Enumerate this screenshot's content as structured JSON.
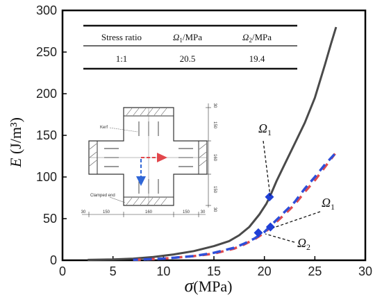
{
  "chart_data": {
    "type": "line",
    "xlabel": {
      "symbol": "σ",
      "unit": "(MPa)"
    },
    "ylabel": {
      "symbol": "E",
      "unit": "(J/m³)"
    },
    "xlim": [
      0,
      30
    ],
    "ylim": [
      0,
      300
    ],
    "xticks": [
      0,
      5,
      10,
      15,
      20,
      25,
      30
    ],
    "yticks": [
      0,
      50,
      100,
      150,
      200,
      250,
      300
    ],
    "grid": false,
    "series": [
      {
        "style": "solid",
        "color": "#4a4a4a",
        "x": [
          2.5,
          5,
          7,
          9,
          11,
          13,
          15,
          16.5,
          17.5,
          18.5,
          19.5,
          20.2,
          20.6,
          21.2,
          22,
          23,
          24,
          25,
          26,
          26.6,
          27.1
        ],
        "y": [
          0.5,
          1,
          2,
          4,
          7,
          11,
          17,
          23,
          30,
          40,
          55,
          68,
          78,
          95,
          115,
          140,
          165,
          195,
          235,
          260,
          280
        ]
      },
      {
        "style": "dashed",
        "color": "#e04a4f",
        "x": [
          7,
          10,
          13,
          15,
          17,
          18,
          19,
          20,
          21,
          22,
          23,
          24,
          25,
          26,
          27
        ],
        "y": [
          0.5,
          2,
          5,
          8,
          14,
          19,
          25,
          33,
          44,
          55,
          67,
          82,
          96,
          112,
          128
        ]
      },
      {
        "style": "dashed",
        "color": "#2e4fd9",
        "x": [
          7,
          10,
          13,
          15,
          17,
          18,
          19,
          20,
          21,
          22,
          23,
          24,
          25,
          26,
          27
        ],
        "y": [
          0.5,
          2,
          5,
          9,
          15,
          20,
          26,
          34,
          46,
          58,
          70,
          86,
          100,
          115,
          128
        ]
      }
    ],
    "markers": [
      {
        "x": 20.5,
        "y": 76,
        "color": "#1f3fd6"
      },
      {
        "x": 19.4,
        "y": 33,
        "color": "#1f3fd6"
      },
      {
        "x": 20.6,
        "y": 40,
        "color": "#1f3fd6"
      }
    ],
    "annotations": [
      {
        "symbol": "Ω",
        "sub": "1"
      },
      {
        "symbol": "Ω",
        "sub": "1"
      },
      {
        "symbol": "Ω",
        "sub": "2"
      }
    ],
    "table": {
      "headers": [
        "Stress ratio",
        "Ω1/MPa",
        "Ω2/MPa"
      ],
      "row": [
        "1:1",
        "20.5",
        "19.4"
      ]
    },
    "inset_labels": {
      "kerf": "Kerf",
      "clamped": "Clamped end",
      "right_dims": [
        "30",
        "150",
        "160",
        "150",
        "30"
      ],
      "bottom_dims": [
        "30",
        "150",
        "160",
        "150",
        "30"
      ]
    }
  }
}
